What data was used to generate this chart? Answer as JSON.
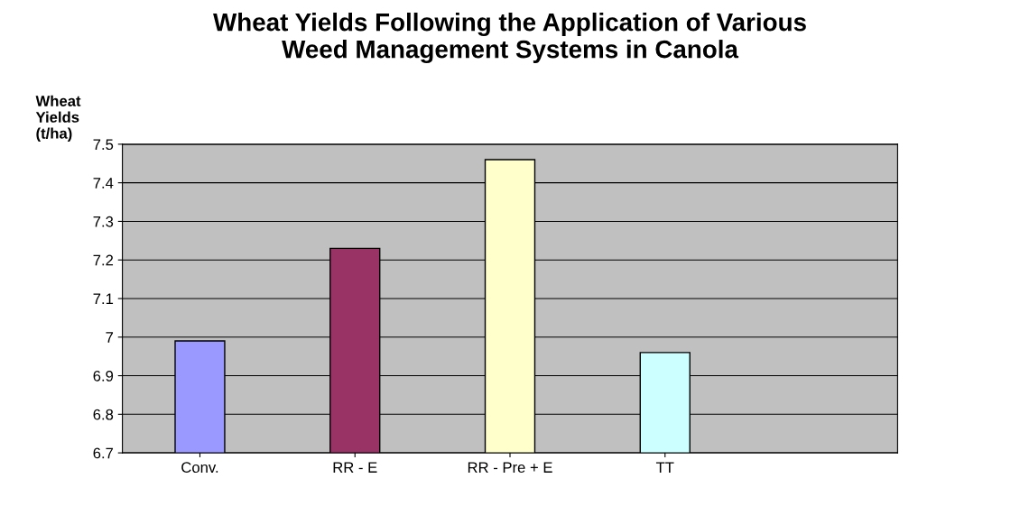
{
  "chart_data": {
    "type": "bar",
    "title": "Wheat Yields Following the Application of Various\nWeed Management Systems in Canola",
    "ylabel": "Wheat\nYields\n(t/ha)",
    "categories": [
      "Conv.",
      "RR - E",
      "RR - Pre + E",
      "TT"
    ],
    "values": [
      6.99,
      7.23,
      7.46,
      6.96
    ],
    "colors": [
      "#9999ff",
      "#993366",
      "#ffffcc",
      "#ccffff"
    ],
    "ylim": [
      6.7,
      7.5
    ],
    "yticks": [
      6.7,
      6.8,
      6.9,
      7,
      7.1,
      7.2,
      7.3,
      7.4,
      7.5
    ],
    "grid": "y"
  }
}
